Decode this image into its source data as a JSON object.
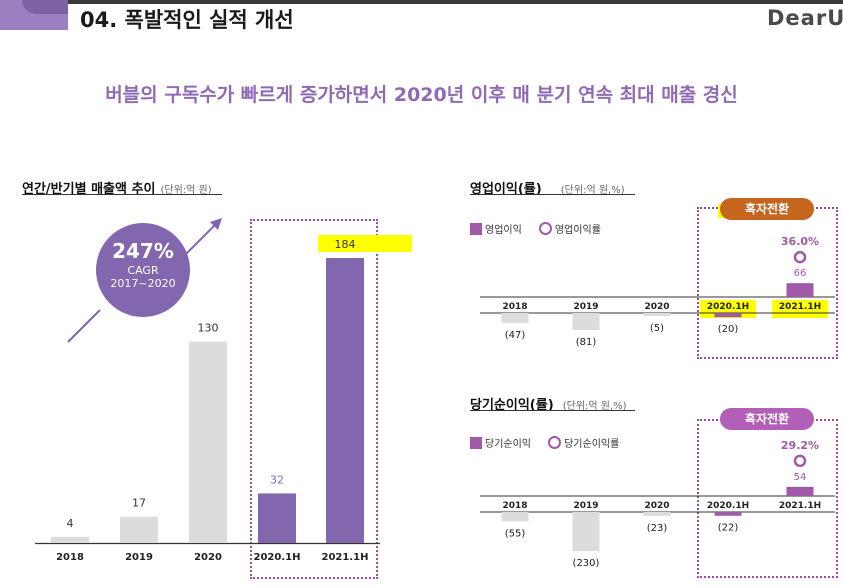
{
  "header": {
    "title": "04. 폭발적인 실적 개선",
    "brand": "DearU"
  },
  "headline": "버블의 구독수가 빠르게 증가하면서 2020년 이후 매 분기 연속 최대 매출 경신",
  "colors": {
    "accent": "#8e6bb4",
    "bar_purple": "#8266ae",
    "bar_grey": "#dcdcdc",
    "profit_purple": "#a05aa8",
    "highlight": "#ffff00"
  },
  "revenue": {
    "title": "연간/반기별 매출액 추이",
    "unit": "(단위:억 원)",
    "cagr_value": "247%",
    "cagr_label": "CAGR",
    "cagr_period": "2017~2020"
  },
  "op": {
    "title": "영업이익(률)",
    "unit": "(단위:억 원,%)",
    "legend_bar": "영업이익",
    "legend_rate": "영업이익률",
    "badge": "흑자전환",
    "rate_label": "36.0%"
  },
  "net": {
    "title": "당기순이익(률)",
    "unit": "(단위:억 원,%)",
    "legend_bar": "당기순이익",
    "legend_rate": "당기순이익률",
    "badge": "흑자전환",
    "rate_label": "29.2%"
  },
  "chart_data": [
    {
      "type": "bar",
      "title": "연간/반기별 매출액 추이",
      "categories": [
        "2018",
        "2019",
        "2020",
        "2020.1H",
        "2021.1H"
      ],
      "values": [
        4,
        17,
        130,
        32,
        184
      ],
      "value_labels": [
        "4",
        "17",
        "130",
        "32",
        "184"
      ]
    },
    {
      "type": "bar",
      "title": "영업이익(률)",
      "categories": [
        "2018",
        "2019",
        "2020",
        "2020.1H",
        "2021.1H"
      ],
      "series": [
        {
          "name": "영업이익",
          "values": [
            -47,
            -81,
            -5,
            -20,
            66
          ]
        },
        {
          "name": "영업이익률",
          "values": [
            null,
            null,
            null,
            null,
            36.0
          ]
        }
      ],
      "value_labels": [
        "(47)",
        "(81)",
        "(5)",
        "(20)",
        "66"
      ]
    },
    {
      "type": "bar",
      "title": "당기순이익(률)",
      "categories": [
        "2018",
        "2019",
        "2020",
        "2020.1H",
        "2021.1H"
      ],
      "series": [
        {
          "name": "당기순이익",
          "values": [
            -55,
            -230,
            -23,
            -22,
            54
          ]
        },
        {
          "name": "당기순이익률",
          "values": [
            null,
            null,
            null,
            null,
            29.2
          ]
        }
      ],
      "value_labels": [
        "(55)",
        "(230)",
        "(23)",
        "(22)",
        "54"
      ]
    }
  ]
}
